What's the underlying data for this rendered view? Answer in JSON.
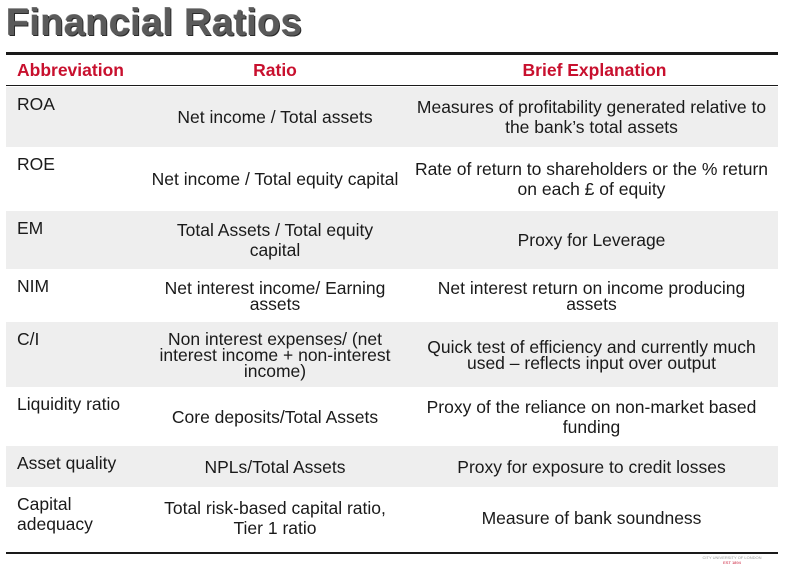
{
  "title": "Financial Ratios",
  "header": {
    "col1": "Abbreviation",
    "col2": "Ratio",
    "col3": "Brief Explanation"
  },
  "rows": [
    {
      "abbr": "ROA",
      "ratio": "Net income / Total assets",
      "explanation": "Measures of profitability generated relative to the bank’s total assets"
    },
    {
      "abbr": "ROE",
      "ratio": "Net income / Total equity capital",
      "explanation": "Rate of return to shareholders or the % return on each £ of equity"
    },
    {
      "abbr": "EM",
      "ratio": "Total Assets / Total equity capital",
      "explanation": "Proxy for Leverage"
    },
    {
      "abbr": "NIM",
      "ratio": "Net interest income/ Earning assets",
      "explanation": "Net interest return on income producing assets"
    },
    {
      "abbr": "C/I",
      "ratio": "Non interest expenses/ (net interest income + non-interest income)",
      "explanation": "Quick test of efficiency and currently much used – reflects input over output"
    },
    {
      "abbr": "Liquidity ratio",
      "ratio": "Core deposits/Total Assets",
      "explanation": "Proxy of the reliance on non-market based funding"
    },
    {
      "abbr": "Asset quality",
      "ratio": "NPLs/Total Assets",
      "explanation": "Proxy for exposure to credit losses"
    },
    {
      "abbr": "Capital adequacy",
      "ratio": "Total risk-based capital ratio, Tier 1 ratio",
      "explanation": "Measure of bank soundness"
    }
  ],
  "logo": {
    "line1": "CITY UNIVERSITY OF LONDON",
    "line2": "EST 1894"
  },
  "colors": {
    "header_text": "#c8102e",
    "title_text": "#5a5a5a",
    "shade": "#eeeeee"
  }
}
